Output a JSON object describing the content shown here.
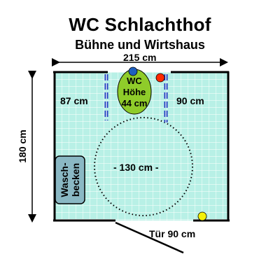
{
  "title": "WC Schlachthof",
  "subtitle": "Bühne und Wirtshaus",
  "dimensions": {
    "width_label": "215 cm",
    "height_label": "180 cm",
    "left_space_label": "87 cm",
    "right_space_label": "90 cm",
    "turning_circle_label": "- 130 cm -",
    "door_label": "Tür 90 cm"
  },
  "toilet": {
    "line1": "WC",
    "line2": "Höhe",
    "line3": "44 cm"
  },
  "sink": {
    "line1": "Wasch-",
    "line2": "becken"
  },
  "colors": {
    "floor": "#b8f0e6",
    "grid": "#ffffff",
    "wall": "#000000",
    "toilet": "#8fcc2a",
    "grab_bar": "#1f3fbf",
    "sink": "#8ab8c4",
    "red_button": "#ff2a00",
    "blue_button": "#1e5fbf",
    "yellow_button": "#f4f00a"
  }
}
